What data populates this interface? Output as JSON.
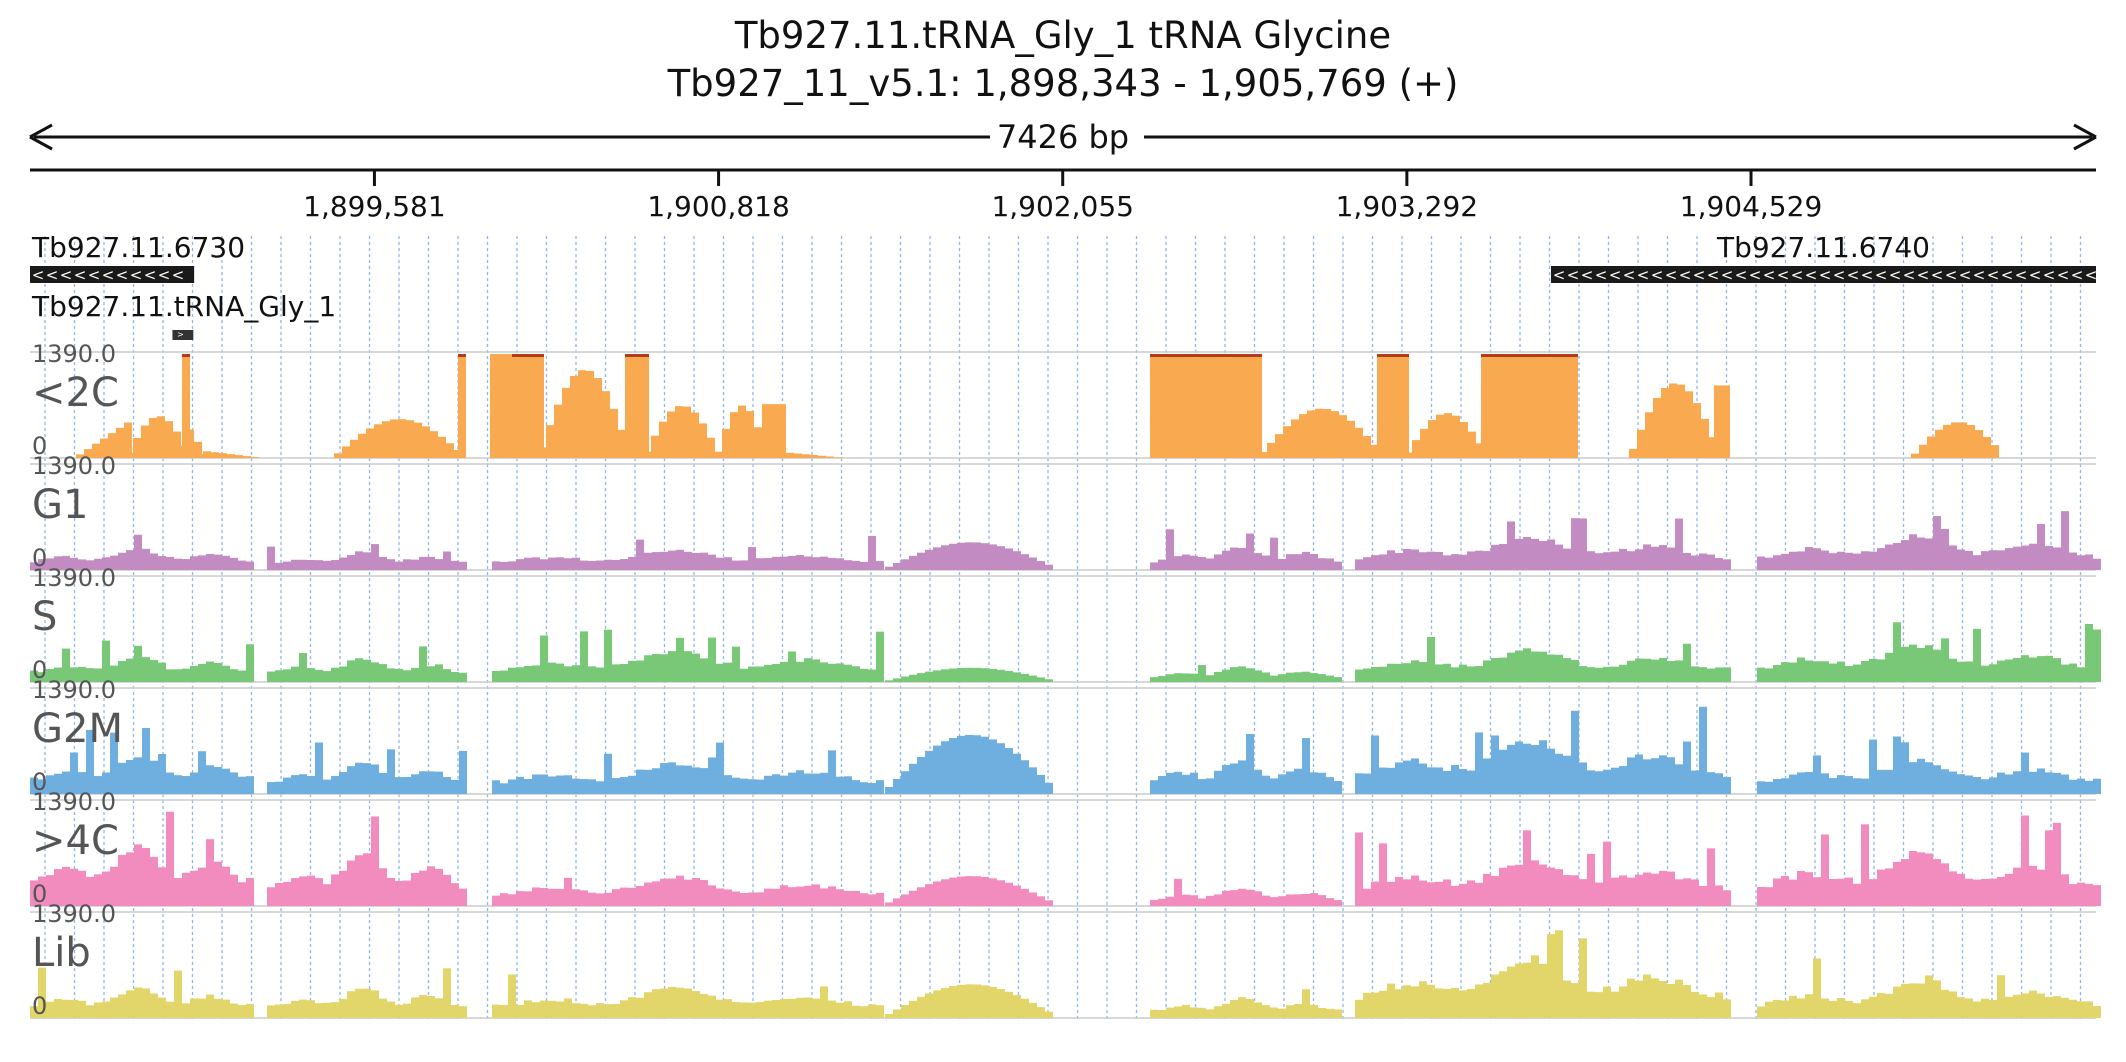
{
  "header": {
    "title": "Tb927.11.tRNA_Gly_1  tRNA Glycine",
    "location": "Tb927_11_v5.1: 1,898,343 - 1,905,769 (+)",
    "span_label": "7426 bp"
  },
  "chart_data": {
    "type": "area",
    "region": {
      "chromosome": "Tb927_11_v5.1",
      "start": 1898343,
      "end": 1905769,
      "strand": "+"
    },
    "xlim": [
      1898343,
      1905769
    ],
    "tick_values": [
      1899581,
      1900818,
      1902055,
      1903292,
      1904529
    ],
    "tick_labels": [
      "1,899,581",
      "1,900,818",
      "1,902,055",
      "1,903,292",
      "1,904,529"
    ],
    "genes": [
      {
        "name": "Tb927.11.6730",
        "start": 1898343,
        "end": 1898933,
        "strand": "-",
        "color": "#1a1a1a"
      },
      {
        "name": "Tb927.11.6740",
        "start": 1903810,
        "end": 1905769,
        "strand": "-",
        "color": "#1a1a1a"
      },
      {
        "name": "Tb927.11.tRNA_Gly_1",
        "start": 1898855,
        "end": 1898930,
        "strand": "+",
        "color": "#333333"
      }
    ],
    "ylim": [
      0,
      1390
    ],
    "ymax_label": "1390.0",
    "ymin_label": "0",
    "overflow_color": "#b33a1a",
    "series": [
      {
        "name": "<2C",
        "color": "#f9a94f",
        "segments": [
          {
            "start": 1898510,
            "end": 1898685,
            "peak": 480,
            "shape": "rise",
            "spikes": [
              [
                1898683,
                1898686,
                1400
              ]
            ]
          },
          {
            "start": 1898685,
            "end": 1898900,
            "peak": 560,
            "shape": "hump"
          },
          {
            "start": 1898890,
            "end": 1898905,
            "peak": 1400,
            "shape": "flat"
          },
          {
            "start": 1898905,
            "end": 1898965,
            "peak": 380,
            "shape": "fall"
          },
          {
            "start": 1898965,
            "end": 1899146,
            "peak": 90,
            "shape": "fall"
          },
          {
            "start": 1899435,
            "end": 1899880,
            "peak": 520,
            "shape": "hump"
          },
          {
            "start": 1899880,
            "end": 1899895,
            "peak": 1400,
            "shape": "flat"
          },
          {
            "start": 1899995,
            "end": 1900075,
            "peak": 1390,
            "shape": "flat"
          },
          {
            "start": 1900075,
            "end": 1900170,
            "peak": 1400,
            "shape": "flat"
          },
          {
            "start": 1900170,
            "end": 1900480,
            "peak": 1180,
            "shape": "hump"
          },
          {
            "start": 1900480,
            "end": 1900545,
            "peak": 1400,
            "shape": "flat"
          },
          {
            "start": 1900545,
            "end": 1900800,
            "peak": 700,
            "shape": "hump"
          },
          {
            "start": 1900800,
            "end": 1900975,
            "peak": 700,
            "shape": "hump"
          },
          {
            "start": 1900975,
            "end": 1901060,
            "peak": 720,
            "shape": "flat"
          },
          {
            "start": 1901060,
            "end": 1901240,
            "peak": 70,
            "shape": "fall"
          },
          {
            "start": 1902370,
            "end": 1902760,
            "peak": 1400,
            "shape": "flat"
          },
          {
            "start": 1902760,
            "end": 1903185,
            "peak": 660,
            "shape": "hump"
          },
          {
            "start": 1903185,
            "end": 1903280,
            "peak": 1400,
            "shape": "flat"
          },
          {
            "start": 1903280,
            "end": 1903560,
            "peak": 600,
            "shape": "hump"
          },
          {
            "start": 1903560,
            "end": 1903850,
            "peak": 1400,
            "shape": "flat"
          },
          {
            "start": 1903850,
            "end": 1903905,
            "peak": 1400,
            "shape": "flat"
          },
          {
            "start": 1904090,
            "end": 1904395,
            "peak": 1000,
            "shape": "hump"
          },
          {
            "start": 1904395,
            "end": 1904435,
            "peak": 970,
            "shape": "flat"
          },
          {
            "start": 1905105,
            "end": 1905420,
            "peak": 480,
            "shape": "hump"
          }
        ]
      },
      {
        "name": "G1",
        "color": "#c28cc2",
        "segments": [
          {
            "start": 1898343,
            "end": 1899146,
            "peak": 500,
            "shape": "bumpy"
          },
          {
            "start": 1899196,
            "end": 1899910,
            "peak": 420,
            "shape": "bumpy"
          },
          {
            "start": 1900005,
            "end": 1901400,
            "peak": 470,
            "shape": "bumpy"
          },
          {
            "start": 1901415,
            "end": 1902005,
            "peak": 370,
            "shape": "hump"
          },
          {
            "start": 1902370,
            "end": 1903045,
            "peak": 550,
            "shape": "bumpy"
          },
          {
            "start": 1903105,
            "end": 1904435,
            "peak": 760,
            "shape": "bumpy"
          },
          {
            "start": 1904550,
            "end": 1905769,
            "peak": 800,
            "shape": "bumpy"
          }
        ]
      },
      {
        "name": "S",
        "color": "#78c878",
        "segments": [
          {
            "start": 1898343,
            "end": 1899146,
            "peak": 620,
            "shape": "bumpy"
          },
          {
            "start": 1899196,
            "end": 1899910,
            "peak": 560,
            "shape": "bumpy"
          },
          {
            "start": 1900005,
            "end": 1901400,
            "peak": 710,
            "shape": "bumpy"
          },
          {
            "start": 1901415,
            "end": 1902005,
            "peak": 190,
            "shape": "hump"
          },
          {
            "start": 1902370,
            "end": 1903045,
            "peak": 350,
            "shape": "bumpy"
          },
          {
            "start": 1903105,
            "end": 1904435,
            "peak": 760,
            "shape": "bumpy"
          },
          {
            "start": 1904550,
            "end": 1905769,
            "peak": 860,
            "shape": "bumpy"
          }
        ]
      },
      {
        "name": "G2M",
        "color": "#6fafdf",
        "segments": [
          {
            "start": 1898343,
            "end": 1899146,
            "peak": 900,
            "shape": "bumpy"
          },
          {
            "start": 1899196,
            "end": 1899910,
            "peak": 740,
            "shape": "bumpy"
          },
          {
            "start": 1900005,
            "end": 1901400,
            "peak": 720,
            "shape": "bumpy"
          },
          {
            "start": 1901415,
            "end": 1902005,
            "peak": 790,
            "shape": "hump"
          },
          {
            "start": 1902370,
            "end": 1903045,
            "peak": 820,
            "shape": "bumpy"
          },
          {
            "start": 1903105,
            "end": 1904435,
            "peak": 1240,
            "shape": "bumpy"
          },
          {
            "start": 1904550,
            "end": 1905769,
            "peak": 780,
            "shape": "bumpy"
          }
        ]
      },
      {
        "name": ">4C",
        "color": "#f28cbf",
        "segments": [
          {
            "start": 1898343,
            "end": 1899146,
            "peak": 1400,
            "shape": "bumpy"
          },
          {
            "start": 1899196,
            "end": 1899910,
            "peak": 1200,
            "shape": "bumpy"
          },
          {
            "start": 1900005,
            "end": 1901400,
            "peak": 680,
            "shape": "bumpy"
          },
          {
            "start": 1901415,
            "end": 1902005,
            "peak": 400,
            "shape": "hump"
          },
          {
            "start": 1902370,
            "end": 1903045,
            "peak": 420,
            "shape": "bumpy"
          },
          {
            "start": 1903105,
            "end": 1904435,
            "peak": 1090,
            "shape": "bumpy"
          },
          {
            "start": 1904550,
            "end": 1905769,
            "peak": 1240,
            "shape": "bumpy"
          }
        ]
      },
      {
        "name": "Lib",
        "color": "#e2d56a",
        "segments": [
          {
            "start": 1898343,
            "end": 1899146,
            "peak": 700,
            "shape": "bumpy"
          },
          {
            "start": 1899196,
            "end": 1899910,
            "peak": 700,
            "shape": "bumpy"
          },
          {
            "start": 1900005,
            "end": 1901400,
            "peak": 700,
            "shape": "bumpy"
          },
          {
            "start": 1901415,
            "end": 1902005,
            "peak": 450,
            "shape": "hump"
          },
          {
            "start": 1902370,
            "end": 1903045,
            "peak": 460,
            "shape": "bumpy"
          },
          {
            "start": 1903105,
            "end": 1904435,
            "peak": 1300,
            "shape": "bumpy"
          },
          {
            "start": 1904550,
            "end": 1905769,
            "peak": 820,
            "shape": "bumpy"
          }
        ]
      }
    ]
  }
}
